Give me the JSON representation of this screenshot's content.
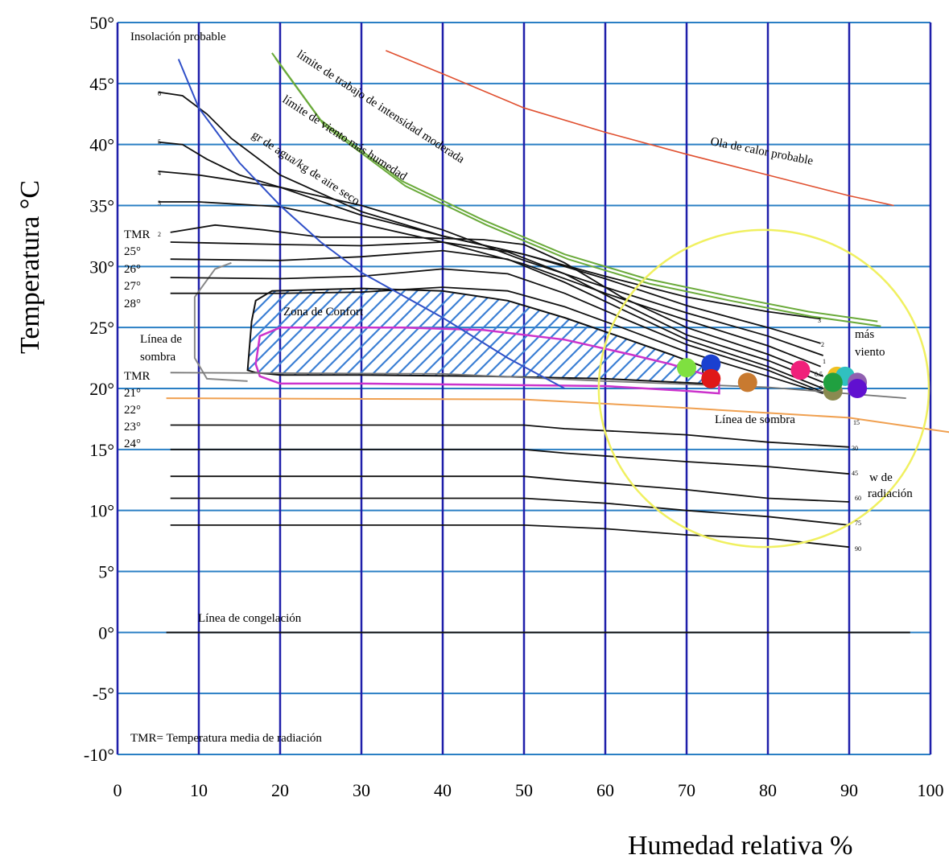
{
  "chart_data": {
    "type": "scatter",
    "title": "",
    "xlabel": "Humedad relativa %",
    "ylabel": "Temperatura °C",
    "xlim": [
      0,
      100
    ],
    "ylim": [
      -10,
      50
    ],
    "x_ticks": [
      0,
      10,
      20,
      30,
      40,
      50,
      60,
      70,
      80,
      90,
      100
    ],
    "x_tick_labels": [
      "0",
      "10",
      "20",
      "30",
      "40",
      "50",
      "60",
      "70",
      "80",
      "90",
      "100"
    ],
    "y_ticks": [
      -10,
      -5,
      0,
      5,
      10,
      15,
      20,
      25,
      30,
      35,
      40,
      45,
      50
    ],
    "y_tick_labels": [
      "-10°",
      "-5°",
      "0°",
      "5°",
      "10°",
      "15°",
      "20°",
      "25°",
      "30°",
      "35°",
      "40°",
      "45°",
      "50°"
    ],
    "grid": true,
    "colors": {
      "grid_vertical": "#1f1faa",
      "grid_horizontal": "#2a7fc4",
      "comfort_hatch": "#3b7fd4",
      "comfort_border": "#cc33cc",
      "heat_wave": "#e05030",
      "work_limit": "#6aaa3a",
      "vapor": "#3050c8",
      "shade_line": "#f0a050",
      "circle": "#f0f060"
    },
    "annotations": {
      "insolacion": "Insolación probable",
      "limite_trabajo": "límite de trabajo de intensidad moderada",
      "limite_viento": "límite de viento más humedad",
      "gr_agua": "gr de agua/kg de aire seco",
      "ola_calor": "Ola de calor probable",
      "zona_confort": "Zona de Confort",
      "linea_sombra_izq_1": "Línea de",
      "linea_sombra_izq_2": "sombra",
      "linea_sombra_der": "Línea de sombra",
      "mas_viento_1": "más",
      "mas_viento_2": "viento",
      "w_radiacion_1": "w de",
      "w_radiacion_2": "radiación",
      "linea_congelacion": "Línea de congelación",
      "tmr_def": "TMR= Temperatura media de radiación"
    },
    "tmr_upper_labels": [
      "TMR",
      "25°",
      "26°",
      "27°",
      "28°"
    ],
    "tmr_lower_labels": [
      "TMR",
      "21°",
      "22°",
      "23°",
      "24°"
    ],
    "insolation_labels": [
      "6",
      "5",
      "4",
      "3",
      "2"
    ],
    "wind_labels": [
      "3",
      "2",
      "1",
      "0.5",
      "0"
    ],
    "radiation_labels": [
      "15",
      "30",
      "45",
      "60",
      "75",
      "90"
    ],
    "series": [
      {
        "points": [
          {
            "x": 70,
            "y": 21.7,
            "color": "#7fe040"
          },
          {
            "x": 73,
            "y": 22.0,
            "color": "#1a40d0"
          },
          {
            "x": 73,
            "y": 20.8,
            "color": "#e01818"
          },
          {
            "x": 77.5,
            "y": 20.5,
            "color": "#c87a30"
          },
          {
            "x": 84,
            "y": 21.5,
            "color": "#f0207a"
          },
          {
            "x": 88.5,
            "y": 21.0,
            "color": "#f0c020"
          },
          {
            "x": 89.5,
            "y": 21.0,
            "color": "#30c0c0"
          },
          {
            "x": 91,
            "y": 20.5,
            "color": "#9060b0"
          },
          {
            "x": 88,
            "y": 19.8,
            "color": "#8a8a50"
          },
          {
            "x": 88,
            "y": 20.5,
            "color": "#20a040"
          },
          {
            "x": 91,
            "y": 20.0,
            "color": "#6010d0"
          }
        ]
      }
    ]
  }
}
